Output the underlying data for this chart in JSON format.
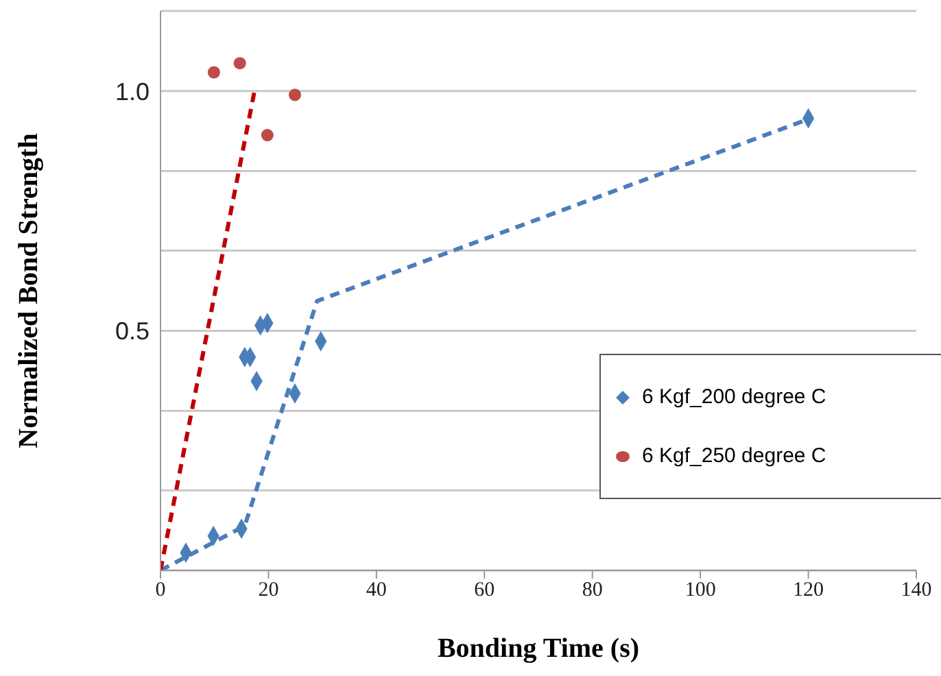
{
  "chart_data": {
    "type": "scatter",
    "xlabel": "Bonding Time (s)",
    "ylabel": "Normalized Bond Strength",
    "xlim": [
      0,
      140
    ],
    "xticks": [
      0,
      20,
      40,
      60,
      80,
      100,
      120,
      140
    ],
    "ylim": [
      0,
      1.167
    ],
    "yticks": [
      {
        "value": 0,
        "label": null
      },
      {
        "value": 0.167,
        "label": null
      },
      {
        "value": 0.333,
        "label": null
      },
      {
        "value": 0.5,
        "label": "0.5"
      },
      {
        "value": 0.667,
        "label": null
      },
      {
        "value": 0.833,
        "label": null
      },
      {
        "value": 1.0,
        "label": "1.0"
      },
      {
        "value": 1.167,
        "label": null
      }
    ],
    "grid": "y",
    "legend": "bottom right",
    "series": [
      {
        "type": "scatter",
        "name": "6 Kgf_200 degree C",
        "color": "#4a7ebb",
        "marker": "diamond",
        "x": [
          4.7,
          9.8,
          15,
          15.6,
          16.6,
          17.8,
          18.5,
          19.8,
          24.9,
          29.7,
          120
        ],
        "values": [
          0.037,
          0.072,
          0.087,
          0.445,
          0.445,
          0.395,
          0.511,
          0.516,
          0.369,
          0.478,
          0.943
        ]
      },
      {
        "type": "scatter",
        "name": "6 Kgf_250 degree C",
        "color": "#be4b48",
        "marker": "circle",
        "x": [
          9.9,
          14.7,
          19.8,
          24.9
        ],
        "values": [
          1.039,
          1.058,
          0.908,
          0.992
        ]
      },
      {
        "type": "line",
        "color": "#4a7ebb",
        "line_style": "dashed",
        "marker": "none",
        "x": [
          0,
          15.6,
          29,
          120.4
        ],
        "values": [
          0,
          0.093,
          0.562,
          0.943
        ]
      },
      {
        "type": "line",
        "color": "#c00000",
        "line_style": "dashed",
        "marker": "none",
        "x": [
          0,
          17.5
        ],
        "values": [
          0,
          1.005
        ]
      }
    ]
  }
}
